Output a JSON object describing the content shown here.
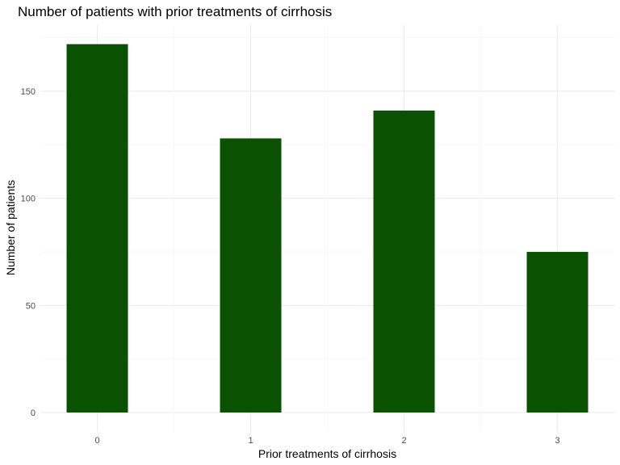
{
  "chart_data": {
    "type": "bar",
    "title": "Number of patients with prior treatments of cirrhosis",
    "xlabel": "Prior treatments of cirrhosis",
    "ylabel": "Number of patients",
    "categories": [
      "0",
      "1",
      "2",
      "3"
    ],
    "values": [
      172,
      128,
      141,
      75
    ],
    "ylim": [
      0,
      175
    ],
    "yticks": [
      0,
      50,
      100,
      150
    ],
    "grid": true,
    "legend": "none",
    "bar_color": "#0b5102"
  }
}
